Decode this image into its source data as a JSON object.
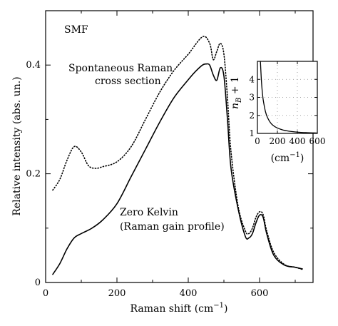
{
  "chart_data": [
    {
      "type": "line",
      "title": "",
      "xlabel": "Raman shift (cm",
      "xlabel_superscript": "−1",
      "xlabel_suffix": ")",
      "ylabel": "Relative intensity (abs. un.)",
      "xlim": [
        0,
        750
      ],
      "ylim": [
        0,
        0.5
      ],
      "xticks": [
        0,
        200,
        400,
        600
      ],
      "xtick_labels": [
        "0",
        "200",
        "400",
        "600"
      ],
      "yticks": [
        0,
        0.2,
        0.4
      ],
      "ytick_labels": [
        "0",
        "0.2",
        "0.4"
      ],
      "grid": false,
      "annotations": [
        {
          "id": "smf",
          "text": "SMF"
        },
        {
          "id": "spont1",
          "text": "Spontaneous Raman"
        },
        {
          "id": "spont2",
          "text": "cross section"
        },
        {
          "id": "zero1",
          "text": "Zero Kelvin"
        },
        {
          "id": "zero2",
          "text": "(Raman gain profile)"
        }
      ],
      "series": [
        {
          "style": "solid",
          "color": "#000000",
          "x": [
            20,
            40,
            60,
            80,
            100,
            130,
            160,
            200,
            240,
            280,
            320,
            360,
            400,
            420,
            440,
            450,
            460,
            470,
            480,
            490,
            500,
            510,
            520,
            540,
            560,
            570,
            580,
            590,
            600,
            610,
            620,
            640,
            670,
            700,
            720
          ],
          "y": [
            0.015,
            0.035,
            0.062,
            0.082,
            0.09,
            0.1,
            0.115,
            0.145,
            0.195,
            0.245,
            0.295,
            0.34,
            0.373,
            0.388,
            0.4,
            0.402,
            0.4,
            0.382,
            0.372,
            0.395,
            0.38,
            0.3,
            0.21,
            0.135,
            0.085,
            0.082,
            0.09,
            0.11,
            0.124,
            0.12,
            0.09,
            0.05,
            0.032,
            0.028,
            0.025
          ]
        },
        {
          "style": "dotted",
          "color": "#000000",
          "x": [
            20,
            40,
            60,
            80,
            100,
            120,
            140,
            160,
            200,
            240,
            280,
            320,
            360,
            400,
            440,
            460,
            470,
            480,
            490,
            500,
            510,
            520,
            540,
            560,
            570,
            580,
            590,
            600,
            610,
            620,
            640,
            670,
            700,
            720
          ],
          "y": [
            0.17,
            0.19,
            0.225,
            0.25,
            0.24,
            0.215,
            0.21,
            0.213,
            0.222,
            0.25,
            0.3,
            0.35,
            0.39,
            0.42,
            0.452,
            0.44,
            0.41,
            0.425,
            0.44,
            0.42,
            0.34,
            0.24,
            0.14,
            0.095,
            0.09,
            0.1,
            0.12,
            0.13,
            0.125,
            0.095,
            0.055,
            0.033,
            0.028,
            0.024
          ]
        }
      ]
    },
    {
      "type": "line",
      "title": "",
      "xlabel": "(cm",
      "xlabel_superscript": "−1",
      "xlabel_suffix": ")",
      "ylabel": "n",
      "ylabel_subscript": "B",
      "ylabel_suffix": " + 1",
      "xlim": [
        0,
        600
      ],
      "ylim": [
        1,
        5
      ],
      "xticks": [
        0,
        200,
        400,
        600
      ],
      "xtick_labels": [
        "0",
        "200",
        "400",
        "600"
      ],
      "yticks": [
        1,
        2,
        3,
        4
      ],
      "ytick_labels": [
        "1",
        "2",
        "3",
        "4"
      ],
      "grid": true,
      "series": [
        {
          "style": "solid",
          "color": "#000000",
          "x": [
            30,
            40,
            50,
            60,
            80,
            100,
            130,
            160,
            200,
            250,
            300,
            350,
            400,
            450,
            500,
            550,
            600
          ],
          "y": [
            5.0,
            3.92,
            3.23,
            2.79,
            2.22,
            1.89,
            1.6,
            1.43,
            1.3,
            1.2,
            1.14,
            1.1,
            1.07,
            1.05,
            1.04,
            1.03,
            1.02
          ]
        }
      ]
    }
  ]
}
